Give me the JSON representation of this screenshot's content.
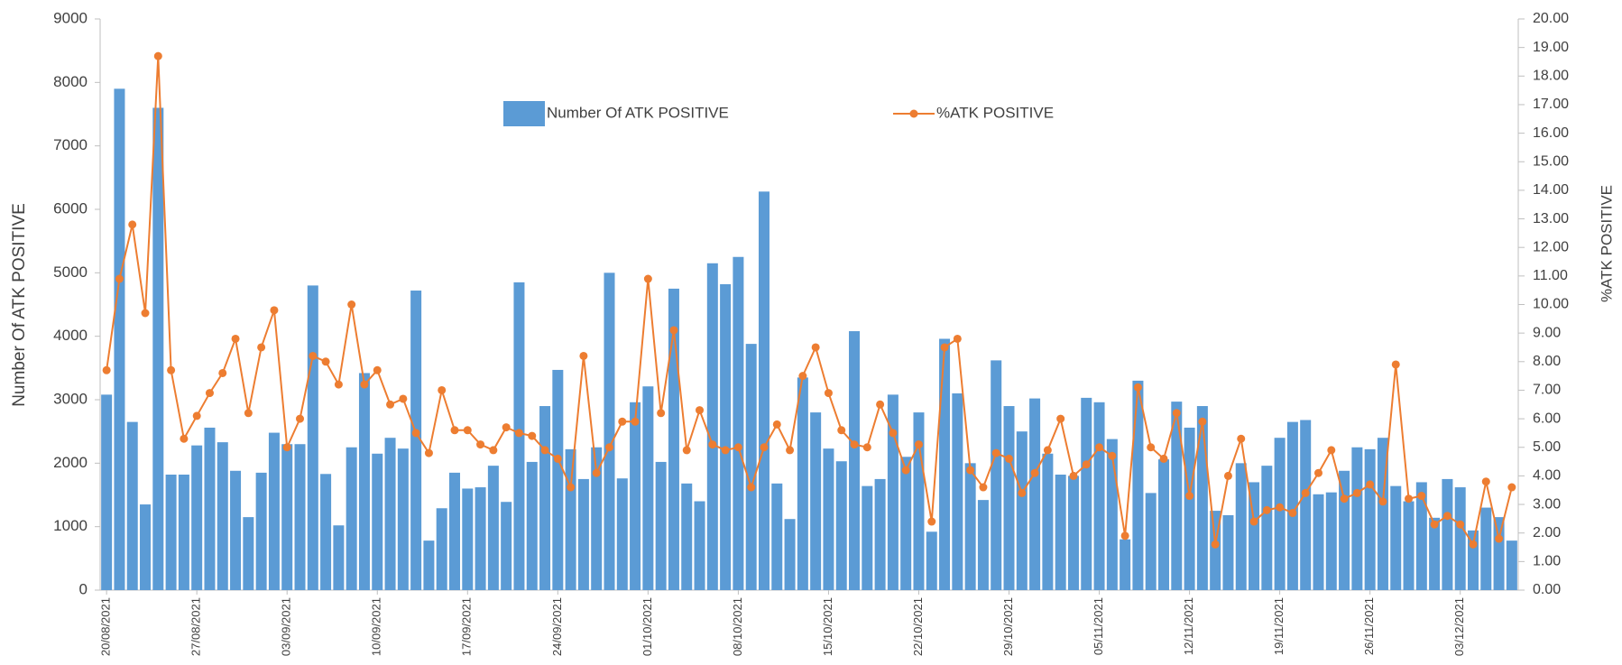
{
  "chart_data": {
    "type": "bar-line",
    "y_label": "Number Of ATK POSITIVE",
    "y2_label": "%ATK POSITIVE",
    "categories": [
      "20/08/2021",
      null,
      null,
      null,
      null,
      null,
      null,
      "27/08/2021",
      null,
      null,
      null,
      null,
      null,
      null,
      "03/09/2021",
      null,
      null,
      null,
      null,
      null,
      null,
      "10/09/2021",
      null,
      null,
      null,
      null,
      null,
      null,
      "17/09/2021",
      null,
      null,
      null,
      null,
      null,
      null,
      "24/09/2021",
      null,
      null,
      null,
      null,
      null,
      null,
      "01/10/2021",
      null,
      null,
      null,
      null,
      null,
      null,
      "08/10/2021",
      null,
      null,
      null,
      null,
      null,
      null,
      "15/10/2021",
      null,
      null,
      null,
      null,
      null,
      null,
      "22/10/2021",
      null,
      null,
      null,
      null,
      null,
      null,
      "29/10/2021",
      null,
      null,
      null,
      null,
      null,
      null,
      "05/11/2021",
      null,
      null,
      null,
      null,
      null,
      null,
      "12/11/2021",
      null,
      null,
      null,
      null,
      null,
      null,
      "19/11/2021",
      null,
      null,
      null,
      null,
      null,
      null,
      "26/11/2021",
      null,
      null,
      null,
      null,
      null,
      null,
      "03/12/2021",
      null,
      null,
      null,
      null
    ],
    "series": [
      {
        "name": "Number Of ATK POSITIVE",
        "type": "bar",
        "color": "#5b9bd5",
        "values": [
          3080,
          7900,
          2650,
          1350,
          7600,
          1820,
          1820,
          2280,
          2560,
          2330,
          1880,
          1150,
          1850,
          2480,
          2300,
          2300,
          4800,
          1830,
          1020,
          2250,
          3420,
          2150,
          2400,
          2230,
          4720,
          780,
          1290,
          1850,
          1600,
          1620,
          1960,
          1390,
          4850,
          2020,
          2900,
          3470,
          2220,
          1750,
          2250,
          5000,
          1760,
          2960,
          3210,
          2020,
          4750,
          1680,
          1400,
          5150,
          4820,
          5250,
          3880,
          6280,
          1680,
          1120,
          3350,
          2800,
          2230,
          2030,
          4080,
          1640,
          1750,
          3080,
          2100,
          2800,
          920,
          3960,
          3100,
          2000,
          1420,
          3620,
          2900,
          2500,
          3020,
          2150,
          1820,
          1800,
          3030,
          2960,
          2380,
          800,
          3300,
          1530,
          2060,
          2970,
          2560,
          2900,
          1250,
          1180,
          2000,
          1700,
          1960,
          2400,
          2650,
          2680,
          1510,
          1540,
          1880,
          2250,
          2220,
          2400,
          1640,
          1400,
          1700,
          1140,
          1750,
          1620,
          940,
          1300,
          1150,
          780
        ]
      },
      {
        "name": "%ATK POSITIVE",
        "type": "line",
        "axis": "y2",
        "color": "#ed7d31",
        "values": [
          7.7,
          10.9,
          12.8,
          9.7,
          18.7,
          7.7,
          5.3,
          6.1,
          6.9,
          7.6,
          8.8,
          6.2,
          8.5,
          9.8,
          5.0,
          6.0,
          8.2,
          8.0,
          7.2,
          10.0,
          7.2,
          7.7,
          6.5,
          6.7,
          5.5,
          4.8,
          7.0,
          5.6,
          5.6,
          5.1,
          4.9,
          5.7,
          5.5,
          5.4,
          4.9,
          4.6,
          3.6,
          8.2,
          4.1,
          5.0,
          5.9,
          5.9,
          10.9,
          6.2,
          9.1,
          4.9,
          6.3,
          5.1,
          4.9,
          5.0,
          3.6,
          5.0,
          5.8,
          4.9,
          7.5,
          8.5,
          6.9,
          5.6,
          5.1,
          5.0,
          6.5,
          5.5,
          4.2,
          5.1,
          2.4,
          8.5,
          8.8,
          4.2,
          3.6,
          4.8,
          4.6,
          3.4,
          4.1,
          4.9,
          6.0,
          4.0,
          4.4,
          5.0,
          4.7,
          1.9,
          7.1,
          5.0,
          4.6,
          6.2,
          3.3,
          5.9,
          1.6,
          4.0,
          5.3,
          2.4,
          2.8,
          2.9,
          2.7,
          3.4,
          4.1,
          4.9,
          3.2,
          3.4,
          3.7,
          3.1,
          7.9,
          3.2,
          3.3,
          2.3,
          2.6,
          2.3,
          1.6,
          3.8,
          1.8,
          3.6
        ]
      }
    ],
    "ylim": [
      0,
      9000
    ],
    "yticks": [
      0,
      1000,
      2000,
      3000,
      4000,
      5000,
      6000,
      7000,
      8000,
      9000
    ],
    "y2lim": [
      0,
      20
    ],
    "y2ticks": [
      {
        "value": 0,
        "label": "0.00"
      },
      {
        "value": 1,
        "label": "1.00"
      },
      {
        "value": 2,
        "label": "2.00"
      },
      {
        "value": 3,
        "label": "3.00"
      },
      {
        "value": 4,
        "label": "4.00"
      },
      {
        "value": 5,
        "label": "5.00"
      },
      {
        "value": 6,
        "label": "6.00"
      },
      {
        "value": 7,
        "label": "7.00"
      },
      {
        "value": 8,
        "label": "8.00"
      },
      {
        "value": 9,
        "label": "9.00"
      },
      {
        "value": 10,
        "label": "10.00"
      },
      {
        "value": 11,
        "label": "11.00"
      },
      {
        "value": 12,
        "label": "12.00"
      },
      {
        "value": 13,
        "label": "13.00"
      },
      {
        "value": 14,
        "label": "14.00"
      },
      {
        "value": 15,
        "label": "15.00"
      },
      {
        "value": 16,
        "label": "16.00"
      },
      {
        "value": 17,
        "label": "17.00"
      },
      {
        "value": 18,
        "label": "18.00"
      },
      {
        "value": 19,
        "label": "19.00"
      },
      {
        "value": 20,
        "label": "20.00"
      }
    ],
    "legend": "top",
    "grid": false
  }
}
